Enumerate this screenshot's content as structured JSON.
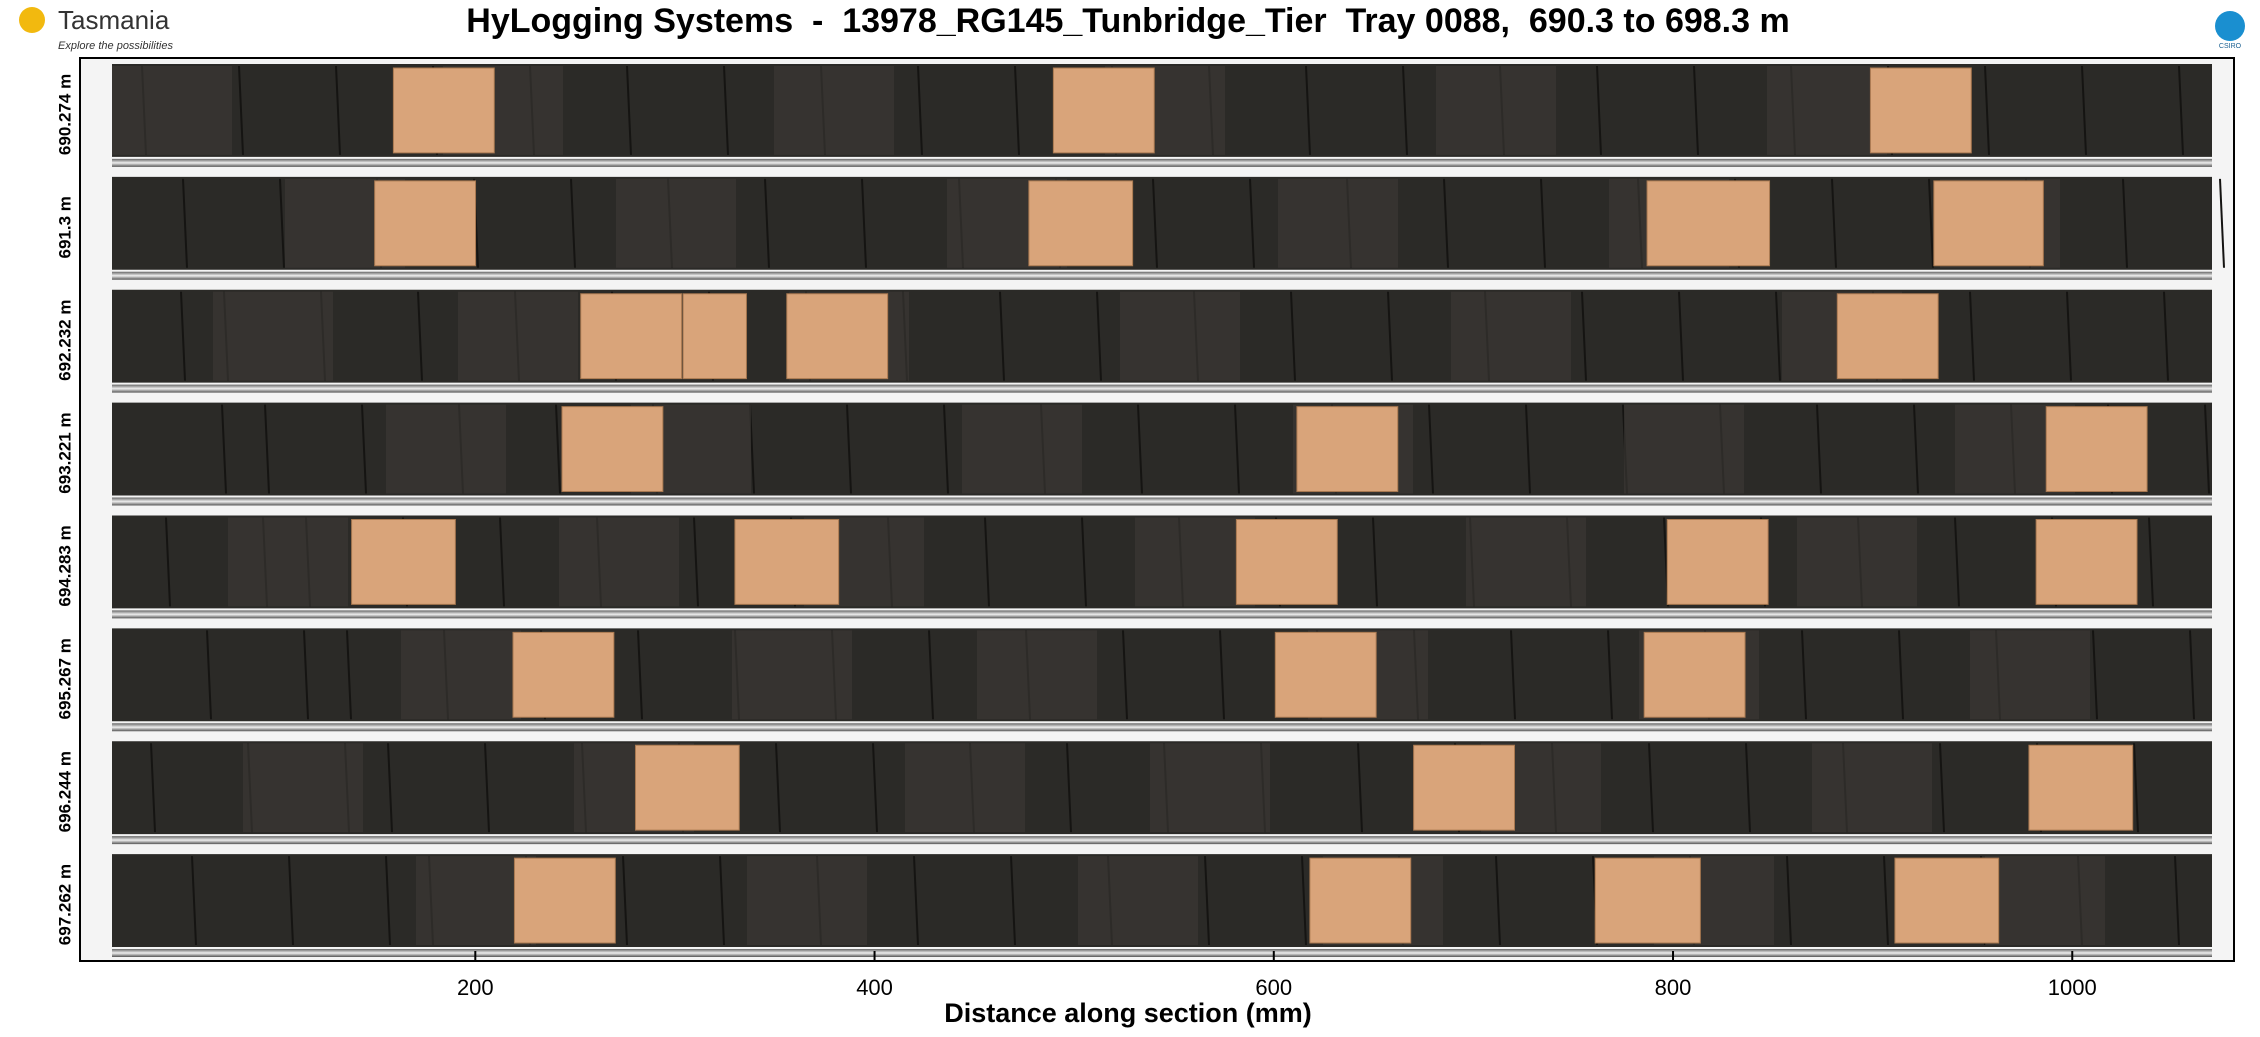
{
  "header": {
    "logo_text": "Tasmania",
    "logo_tagline": "Explore the possibilities",
    "title": "HyLogging Systems  -  13978_RG145_Tunbridge_Tier  Tray 0088,  690.3 to 698.3 m",
    "corner_logo": "CSIRO"
  },
  "chart_data": {
    "type": "image",
    "x_label": "Distance along section (mm)",
    "xlim": [
      18,
      1070
    ],
    "xticks": [
      200,
      400,
      600,
      800,
      1000
    ],
    "rows": [
      "690.274 m",
      "691.3 m",
      "692.232 m",
      "693.221 m",
      "694.283 m",
      "695.267 m",
      "696.244 m",
      "697.262 m"
    ]
  }
}
